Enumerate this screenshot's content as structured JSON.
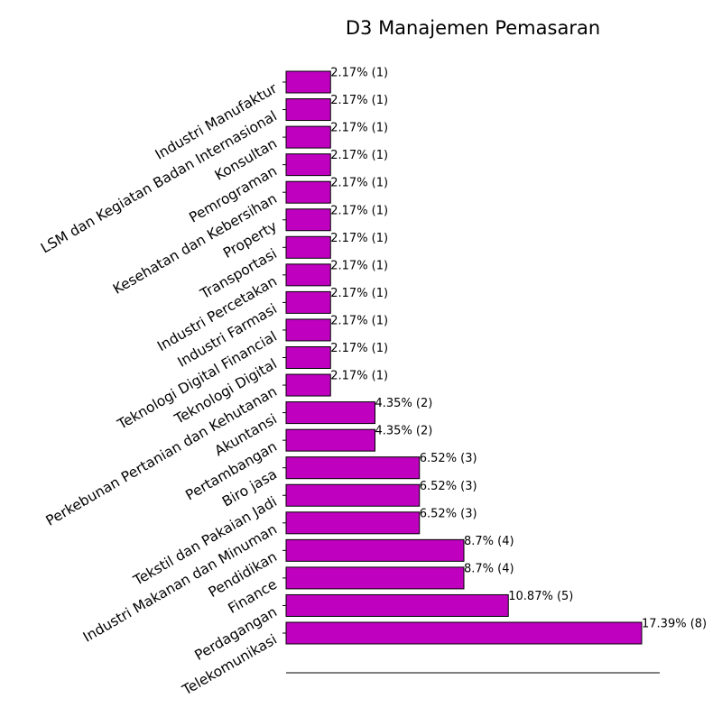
{
  "chart_data": {
    "type": "bar",
    "orientation": "horizontal",
    "title": "D3 Manajemen Pemasaran",
    "xlabel": "",
    "ylabel": "",
    "bar_color": "#bf00bf",
    "categories": [
      "Telekomunikasi",
      "Perdagangan",
      "Finance",
      "Pendidikan",
      "Industri Makanan dan Minuman",
      "Tekstil dan Pakaian Jadi",
      "Biro jasa",
      "Pertambangan",
      "Akuntansi",
      "Perkebunan Pertanian dan Kehutanan",
      "Teknologi Digital",
      "Teknologi Digital Financial",
      "Industri Farmasi",
      "Industri Percetakan",
      "Transportasi",
      "Property",
      "Kesehatan dan Kebersihan",
      "Pemrograman",
      "Konsultan",
      "LSM dan Kegiatan Badan Internasional",
      "Industri Manufaktur"
    ],
    "values": [
      8,
      5,
      4,
      4,
      3,
      3,
      3,
      2,
      2,
      1,
      1,
      1,
      1,
      1,
      1,
      1,
      1,
      1,
      1,
      1,
      1
    ],
    "data_labels": [
      "17.39% (8)",
      "10.87% (5)",
      "8.7% (4)",
      "8.7% (4)",
      "6.52% (3)",
      "6.52% (3)",
      "6.52% (3)",
      "4.35% (2)",
      "4.35% (2)",
      "2.17% (1)",
      "2.17% (1)",
      "2.17% (1)",
      "2.17% (1)",
      "2.17% (1)",
      "2.17% (1)",
      "2.17% (1)",
      "2.17% (1)",
      "2.17% (1)",
      "2.17% (1)",
      "2.17% (1)",
      "2.17% (1)"
    ],
    "xlim": [
      0,
      8.4
    ],
    "grid": false,
    "legend": "none"
  }
}
